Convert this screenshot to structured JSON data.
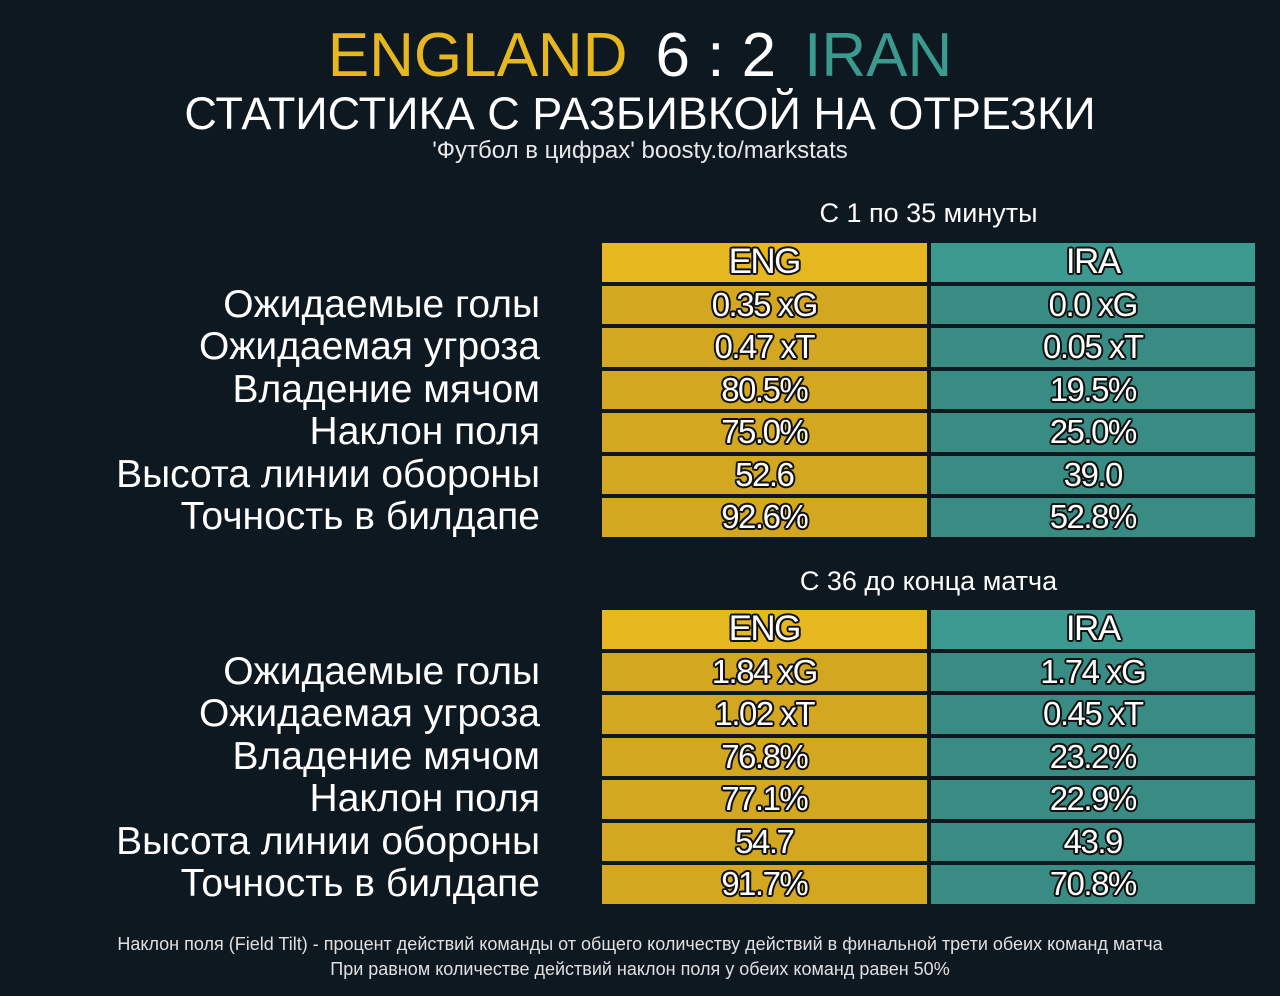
{
  "header": {
    "home_team": "ENGLAND",
    "score": "6 : 2",
    "away_team": "IRAN",
    "subtitle": "СТАТИСТИКА С РАЗБИВКОЙ НА ОТРЕЗКИ",
    "credit": "'Футбол в цифрах' boosty.to/markstats"
  },
  "colors": {
    "home": "#e6b71e",
    "away": "#3a9a90",
    "background": "#0e1820"
  },
  "columns": {
    "home": "ENG",
    "away": "IRA"
  },
  "metrics": [
    "Ожидаемые голы",
    "Ожидаемая угроза",
    "Владение мячом",
    "Наклон поля",
    "Высота линии обороны",
    "Точность в билдапе"
  ],
  "sections": [
    {
      "title": "С 1 по 35 минуты",
      "rows": [
        {
          "home": "0.35 xG",
          "away": "0.0 xG"
        },
        {
          "home": "0.47 xT",
          "away": "0.05 xT"
        },
        {
          "home": "80.5%",
          "away": "19.5%"
        },
        {
          "home": "75.0%",
          "away": "25.0%"
        },
        {
          "home": "52.6",
          "away": "39.0"
        },
        {
          "home": "92.6%",
          "away": "52.8%"
        }
      ]
    },
    {
      "title": "С 36 до конца матча",
      "rows": [
        {
          "home": "1.84 xG",
          "away": "1.74 xG"
        },
        {
          "home": "1.02 xT",
          "away": "0.45 xT"
        },
        {
          "home": "76.8%",
          "away": "23.2%"
        },
        {
          "home": "77.1%",
          "away": "22.9%"
        },
        {
          "home": "54.7",
          "away": "43.9"
        },
        {
          "home": "91.7%",
          "away": "70.8%"
        }
      ]
    }
  ],
  "footer": {
    "line1": "Наклон поля (Field Tilt) - процент действий команды от общего количеству действий в финальной трети обеих команд матча",
    "line2": "При равном количестве действий наклон поля у обеих команд равен 50%"
  }
}
